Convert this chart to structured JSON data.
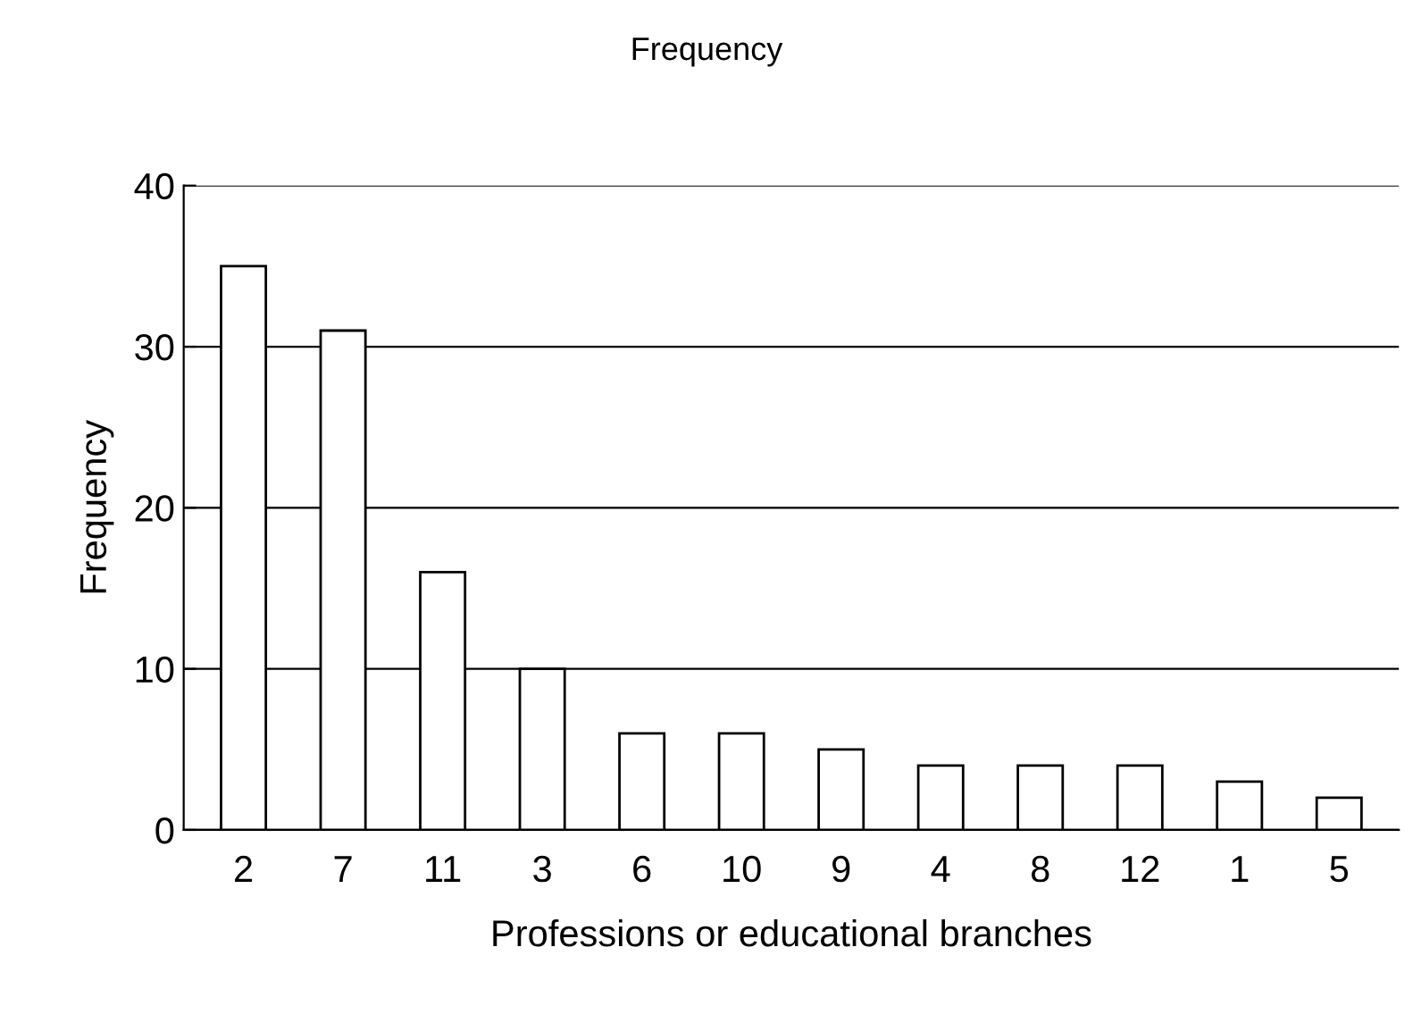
{
  "chart_data": {
    "type": "bar",
    "title": "Frequency",
    "xlabel": "Professions or educational branches",
    "ylabel": "Frequency",
    "categories": [
      "2",
      "7",
      "11",
      "3",
      "6",
      "10",
      "9",
      "4",
      "8",
      "12",
      "1",
      "5"
    ],
    "values": [
      35,
      31,
      16,
      10,
      6,
      6,
      5,
      4,
      4,
      4,
      3,
      2
    ],
    "color": "#ffffff",
    "ylim": [
      0,
      40
    ],
    "yticks": [
      0,
      10,
      20,
      30,
      40
    ],
    "grid": "y"
  }
}
